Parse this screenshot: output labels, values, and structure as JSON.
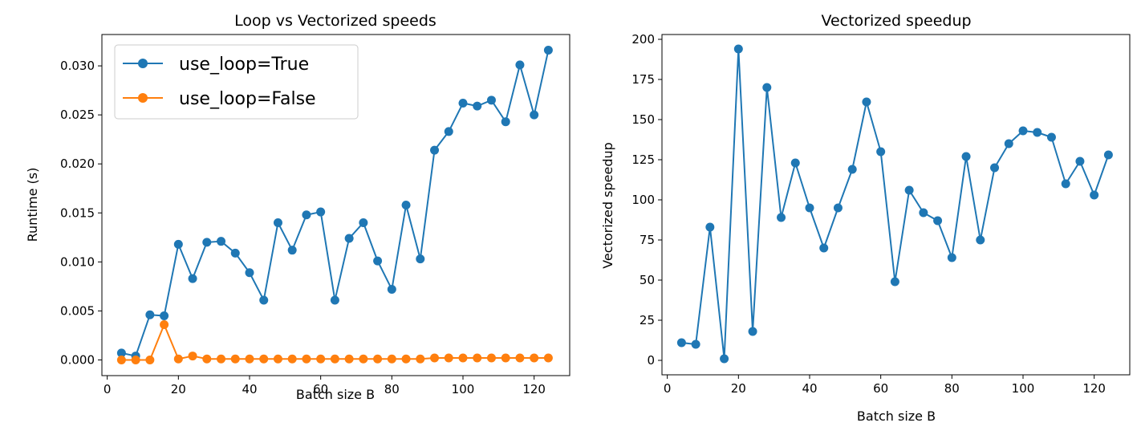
{
  "chart_data": [
    {
      "type": "line",
      "title": "Loop vs Vectorized speeds",
      "xlabel": "Batch size B",
      "ylabel": "Runtime (s)",
      "xlim": [
        -1.5,
        130.0
      ],
      "ylim": [
        -0.0016,
        0.0332
      ],
      "xticks": [
        0,
        20,
        40,
        60,
        80,
        100,
        120
      ],
      "xtick_labels": [
        "0",
        "20",
        "40",
        "60",
        "80",
        "100",
        "120"
      ],
      "yticks": [
        0.0,
        0.005,
        0.01,
        0.015,
        0.02,
        0.025,
        0.03
      ],
      "ytick_labels": [
        "0.000",
        "0.005",
        "0.010",
        "0.015",
        "0.020",
        "0.025",
        "0.030"
      ],
      "grid": false,
      "legend": "upper left",
      "x": [
        4,
        8,
        12,
        16,
        20,
        24,
        28,
        32,
        36,
        40,
        44,
        48,
        52,
        56,
        60,
        64,
        68,
        72,
        76,
        80,
        84,
        88,
        92,
        96,
        100,
        104,
        108,
        112,
        116,
        120,
        124
      ],
      "series": [
        {
          "name": "use_loop=True",
          "color": "#1f77b4",
          "values": [
            0.0007,
            0.0004,
            0.0046,
            0.0045,
            0.0118,
            0.0083,
            0.012,
            0.0121,
            0.0109,
            0.0089,
            0.0061,
            0.014,
            0.0112,
            0.0148,
            0.0151,
            0.0061,
            0.0124,
            0.014,
            0.0101,
            0.0072,
            0.0158,
            0.0103,
            0.0214,
            0.0233,
            0.0262,
            0.0259,
            0.0265,
            0.0243,
            0.0301,
            0.025,
            0.0316
          ]
        },
        {
          "name": "use_loop=False",
          "color": "#ff7f0e",
          "values": [
            0.0,
            0.0,
            0.0,
            0.0036,
            0.0001,
            0.0004,
            0.0001,
            0.0001,
            0.0001,
            0.0001,
            0.0001,
            0.0001,
            0.0001,
            0.0001,
            0.0001,
            0.0001,
            0.0001,
            0.0001,
            0.0001,
            0.0001,
            0.0001,
            0.0001,
            0.0002,
            0.0002,
            0.0002,
            0.0002,
            0.0002,
            0.0002,
            0.0002,
            0.0002,
            0.0002
          ]
        }
      ]
    },
    {
      "type": "line",
      "title": "Vectorized speedup",
      "xlabel": "Batch size B",
      "ylabel": "Vectorized speedup",
      "xlim": [
        -1.5,
        130.0
      ],
      "ylim": [
        -9,
        203
      ],
      "xticks": [
        0,
        20,
        40,
        60,
        80,
        100,
        120
      ],
      "xtick_labels": [
        "0",
        "20",
        "40",
        "60",
        "80",
        "100",
        "120"
      ],
      "yticks": [
        0,
        25,
        50,
        75,
        100,
        125,
        150,
        175,
        200
      ],
      "ytick_labels": [
        "0",
        "25",
        "50",
        "75",
        "100",
        "125",
        "150",
        "175",
        "200"
      ],
      "grid": false,
      "x": [
        4,
        8,
        12,
        16,
        20,
        24,
        28,
        32,
        36,
        40,
        44,
        48,
        52,
        56,
        60,
        64,
        68,
        72,
        76,
        80,
        84,
        88,
        92,
        96,
        100,
        104,
        108,
        112,
        116,
        120,
        124
      ],
      "series": [
        {
          "color": "#1f77b4",
          "values": [
            11,
            10,
            83,
            1,
            194,
            18,
            170,
            89,
            123,
            95,
            70,
            95,
            119,
            161,
            130,
            49,
            106,
            92,
            87,
            64,
            127,
            75,
            120,
            135,
            143,
            142,
            139,
            110,
            124,
            103,
            128
          ]
        }
      ]
    }
  ]
}
